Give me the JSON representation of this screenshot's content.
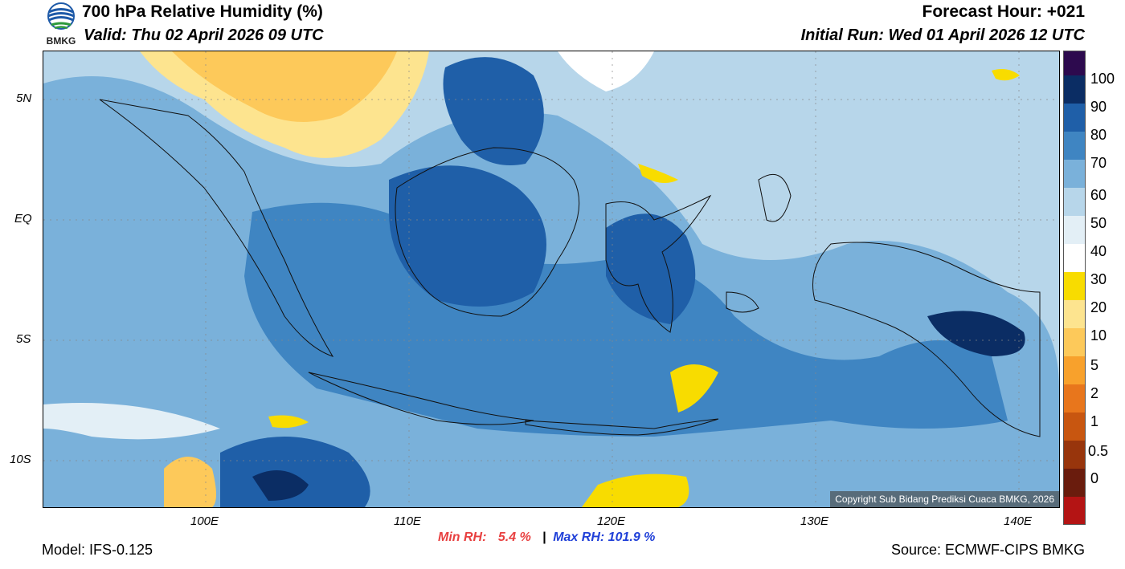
{
  "header": {
    "title": "700 hPa Relative Humidity (%)",
    "valid": "Valid: Thu 02 April 2026 09 UTC",
    "forecast_hour": "Forecast Hour: +021",
    "initial_run": "Initial Run: Wed 01 April 2026 12 UTC",
    "logo_text": "BMKG"
  },
  "map": {
    "lat_labels": [
      "5N",
      "EQ",
      "5S",
      "10S"
    ],
    "lon_labels": [
      "100E",
      "110E",
      "120E",
      "130E",
      "140E"
    ],
    "copyright": "Copyright Sub Bidang Prediksi Cuaca BMKG, 2026"
  },
  "colorbar": {
    "labels": [
      "100",
      "90",
      "80",
      "70",
      "60",
      "50",
      "40",
      "30",
      "20",
      "10",
      "5",
      "2",
      "1",
      "0.5",
      "0"
    ],
    "colors": [
      "#2d0a4e",
      "#0b2d64",
      "#1f5fa8",
      "#3f85c2",
      "#7ab1da",
      "#b7d6ea",
      "#e3eff6",
      "#ffffff",
      "#f8dc00",
      "#fde48f",
      "#fdc95a",
      "#f8a12c",
      "#e8761c",
      "#c85610",
      "#98350c",
      "#6a1c0d",
      "#b41414",
      "#e84040"
    ]
  },
  "stats": {
    "min_label": "Min RH:",
    "min_value": "5.4 %",
    "separator": "|",
    "max_label": "Max RH:",
    "max_value": "101.9 %"
  },
  "footer": {
    "model": "Model: IFS-0.125",
    "source": "Source: ECMWF-CIPS BMKG"
  }
}
